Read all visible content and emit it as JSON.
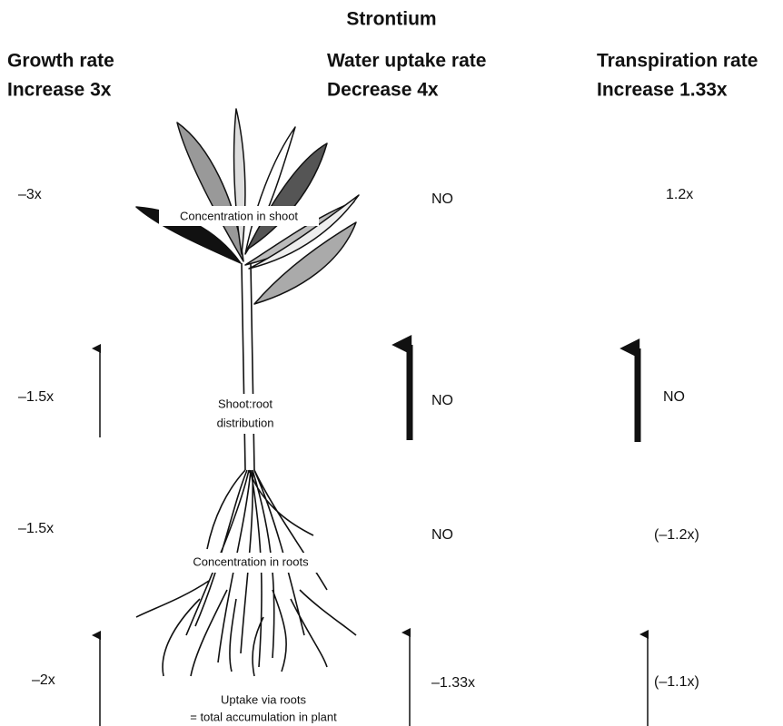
{
  "title": "Strontium",
  "columns": [
    {
      "heading": [
        "Growth rate",
        "Increase 3x"
      ],
      "values": [
        "–3x",
        "–1.5x",
        "–1.5x",
        "–2x"
      ]
    },
    {
      "heading": [
        "Water uptake rate",
        "Decrease 4x"
      ],
      "values": [
        "NO",
        "NO",
        "NO",
        "–1.33x"
      ]
    },
    {
      "heading": [
        "Transpiration rate",
        "Increase 1.33x"
      ],
      "values": [
        "1.2x",
        "NO",
        "(–1.2x)",
        "(–1.1x)"
      ]
    }
  ],
  "plant_labels": {
    "shoot": "Concentration in shoot",
    "distribution": [
      "Shoot:root",
      "distribution"
    ],
    "roots": "Concentration in roots",
    "uptake": [
      "Uptake via roots",
      "= total accumulation in plant"
    ]
  }
}
